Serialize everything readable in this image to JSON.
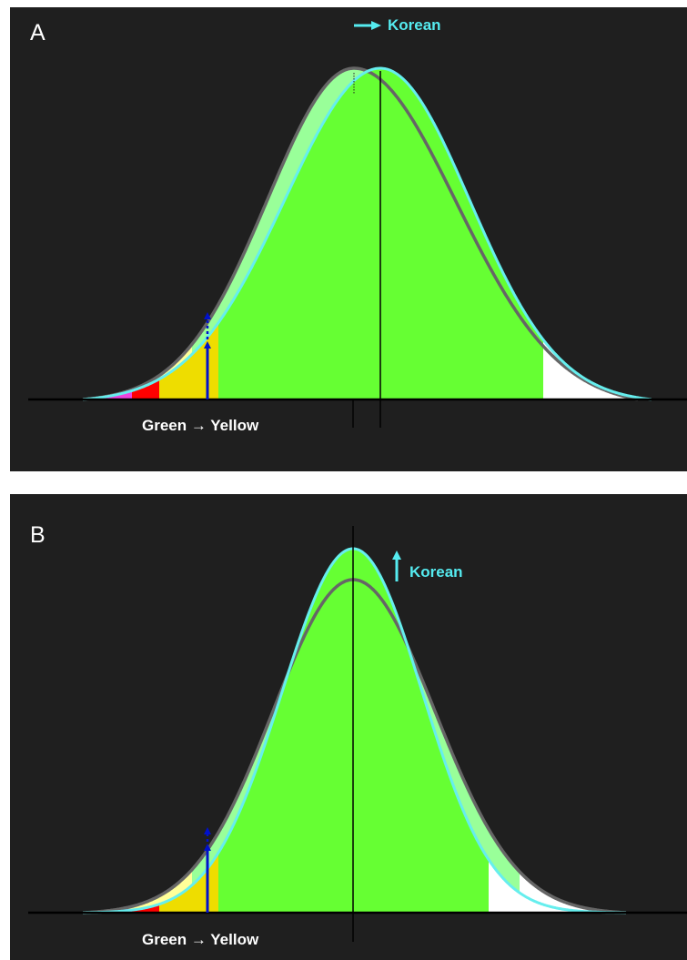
{
  "panels": [
    {
      "label": "A",
      "korean_label": "Korean",
      "korean_arrow_direction": "right",
      "transition_label": "Green → Yellow"
    },
    {
      "label": "B",
      "korean_label": "Korean",
      "korean_arrow_direction": "up",
      "transition_label": "Green → Yellow"
    }
  ],
  "colors": {
    "panel_background": "#1f1f1f",
    "green_fill": "#66ff33",
    "light_green_fill": "#99ff99",
    "yellow_fill": "#eedd00",
    "light_yellow_fill": "#ffff99",
    "red_fill": "#ff0000",
    "magenta_fill": "#ee44dd",
    "white_fill": "#ffffff",
    "korean_curve": "#66eeee",
    "reference_curve": "#666666",
    "marker_arrow": "#0011cc"
  },
  "icons": [
    "right-arrow-icon",
    "up-arrow-icon",
    "up-arrow-icon",
    "dashed-up-arrow-icon"
  ]
}
